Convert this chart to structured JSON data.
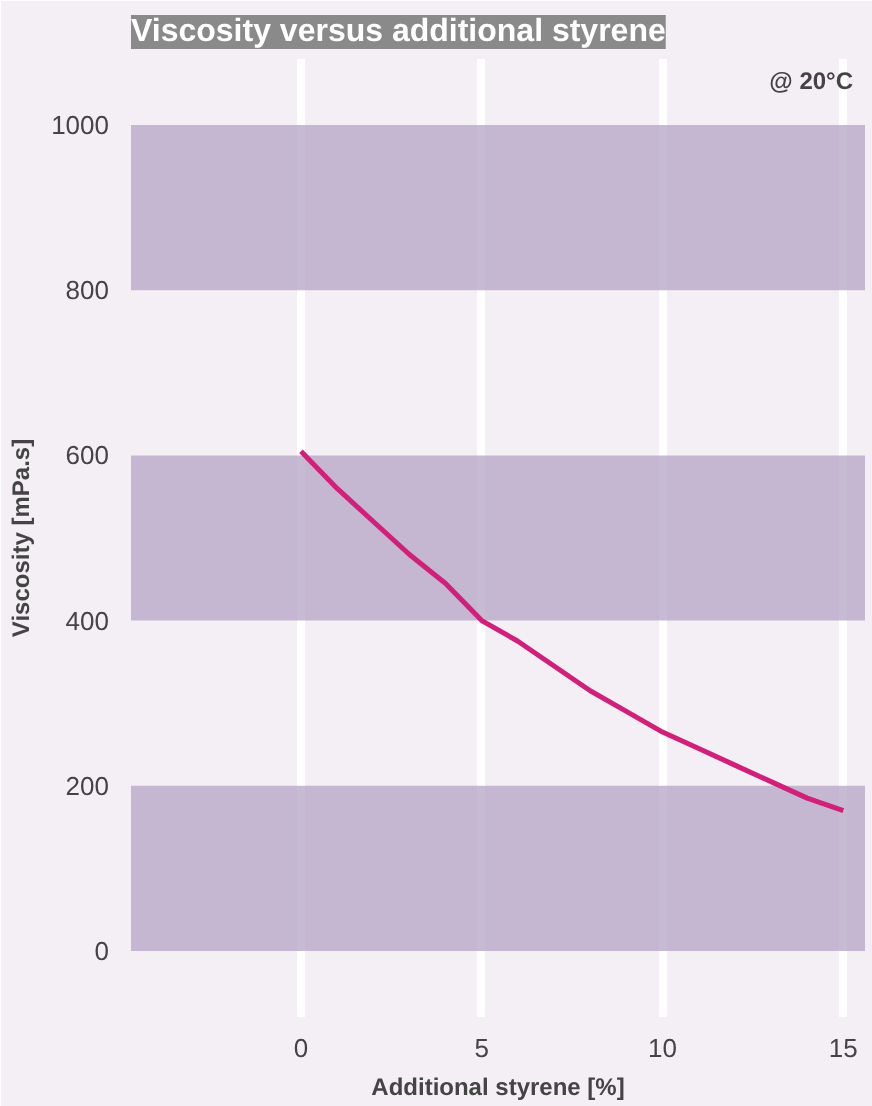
{
  "chart_data": {
    "type": "line",
    "title": "Viscosity versus additional styrene",
    "xlabel": "Additional styrene [%]",
    "ylabel": "Viscosity [mPa.s]",
    "annotations": [
      "@ 20°C"
    ],
    "x": [
      0,
      1,
      2,
      3,
      4,
      5,
      6,
      7,
      8,
      9,
      10,
      11,
      12,
      13,
      14,
      15
    ],
    "series": [
      {
        "color": "#d0207a",
        "values": [
          605,
          560,
          520,
          480,
          445,
          400,
          375,
          345,
          315,
          290,
          265,
          245,
          225,
          205,
          185,
          170
        ]
      }
    ],
    "xlim": [
      -4.7,
      15.6
    ],
    "ylim": [
      -80,
      1080
    ],
    "xticks": [
      0,
      5,
      10,
      15
    ],
    "yticks": [
      0,
      200,
      400,
      600,
      800,
      1000
    ],
    "grid": true,
    "marker": "none",
    "line_style": "solid"
  }
}
